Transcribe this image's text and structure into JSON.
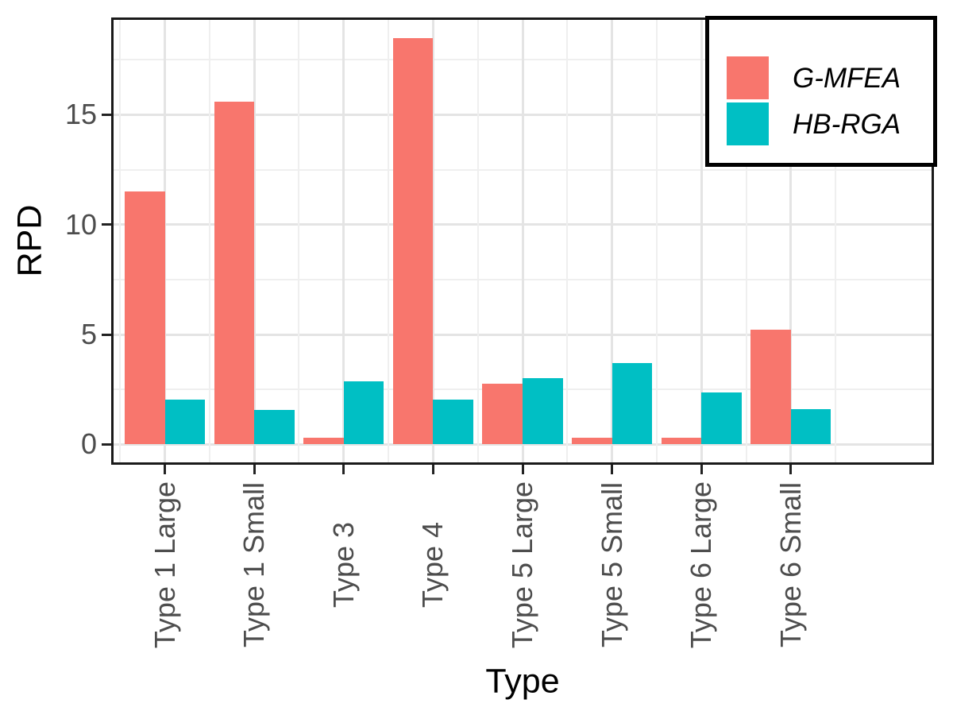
{
  "chart_data": {
    "type": "bar",
    "bar_layout": "grouped-dodge",
    "xlabel": "Type",
    "ylabel": "RPD",
    "categories": [
      "Type 1 Large",
      "Type 1 Small",
      "Type 3",
      "Type 4",
      "Type 5 Large",
      "Type 5 Small",
      "Type 6 Large",
      "Type 6 Small"
    ],
    "series": [
      {
        "name": "G-MFEA",
        "color": "#F8766D",
        "values": [
          11.5,
          15.6,
          0.3,
          18.5,
          2.75,
          0.3,
          0.3,
          5.2
        ]
      },
      {
        "name": "HB-RGA",
        "color": "#00BFC4",
        "values": [
          2.05,
          1.55,
          2.85,
          2.05,
          3.0,
          3.7,
          2.35,
          1.6
        ]
      }
    ],
    "ylim": [
      -0.93,
      19.43
    ],
    "yticks": [
      0,
      5,
      10,
      15
    ],
    "ytick_labels": [
      "0",
      "5",
      "10",
      "15"
    ],
    "minor_gridlines": [
      2.5,
      7.5,
      12.5,
      17.5
    ],
    "grid": true,
    "legend_position": "top-right-inside",
    "legend_text_style": "italic"
  },
  "styles": {
    "panel_background": "#FFFFFF",
    "panel_border_color": "#1A1A1A",
    "major_grid_color": "#E4E4E4",
    "minor_grid_color": "#EFEFEF",
    "axis_text_color": "#4D4D4D",
    "axis_title_color": "#000000",
    "legend_border_color": "#000000"
  }
}
